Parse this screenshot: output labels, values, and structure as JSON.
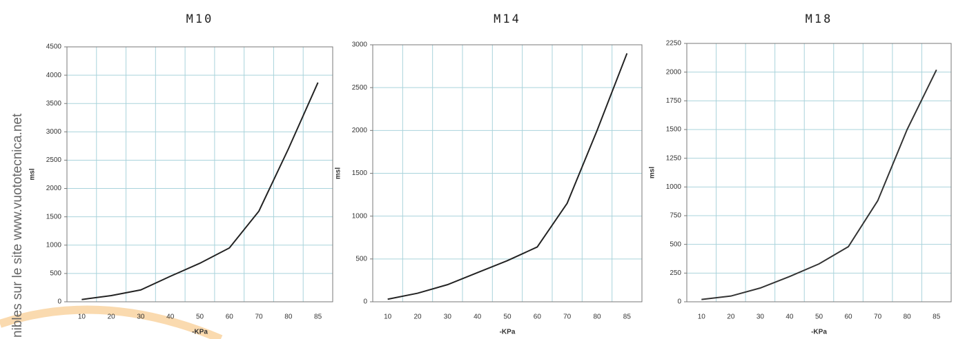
{
  "watermark": "nibles sur le site www.vuototecnica.net",
  "chart_data": [
    {
      "type": "line",
      "title": "M10",
      "x_label": "-KPa",
      "y_label": "msl",
      "categories": [
        "10",
        "20",
        "30",
        "40",
        "50",
        "60",
        "70",
        "80",
        "85"
      ],
      "series": [
        {
          "name": "M10",
          "color": "#222222",
          "values": [
            40,
            110,
            210,
            450,
            680,
            950,
            1600,
            2700,
            3870
          ]
        }
      ],
      "ylim": [
        0,
        4500
      ],
      "yticks": [
        0,
        500,
        1000,
        1500,
        2000,
        2500,
        3000,
        3500,
        4000,
        4500
      ],
      "grid": true
    },
    {
      "type": "line",
      "title": "M14",
      "x_label": "-KPa",
      "y_label": "msl",
      "categories": [
        "10",
        "20",
        "30",
        "40",
        "50",
        "60",
        "70",
        "80",
        "85"
      ],
      "series": [
        {
          "name": "M14",
          "color": "#222222",
          "values": [
            30,
            100,
            200,
            340,
            480,
            640,
            1150,
            2000,
            2900
          ]
        }
      ],
      "ylim": [
        0,
        3000
      ],
      "yticks": [
        0,
        500,
        1000,
        1500,
        2000,
        2500,
        3000
      ],
      "grid": true
    },
    {
      "type": "line",
      "title": "M18",
      "x_label": "-KPa",
      "y_label": "msl",
      "categories": [
        "10",
        "20",
        "30",
        "40",
        "50",
        "60",
        "70",
        "80",
        "85"
      ],
      "series": [
        {
          "name": "M18",
          "color": "#333333",
          "values": [
            20,
            50,
            120,
            220,
            330,
            480,
            880,
            1500,
            2020
          ]
        }
      ],
      "ylim": [
        0,
        2250
      ],
      "yticks": [
        0,
        250,
        500,
        750,
        1000,
        1250,
        1500,
        1750,
        2000,
        2250
      ],
      "grid": true
    }
  ]
}
